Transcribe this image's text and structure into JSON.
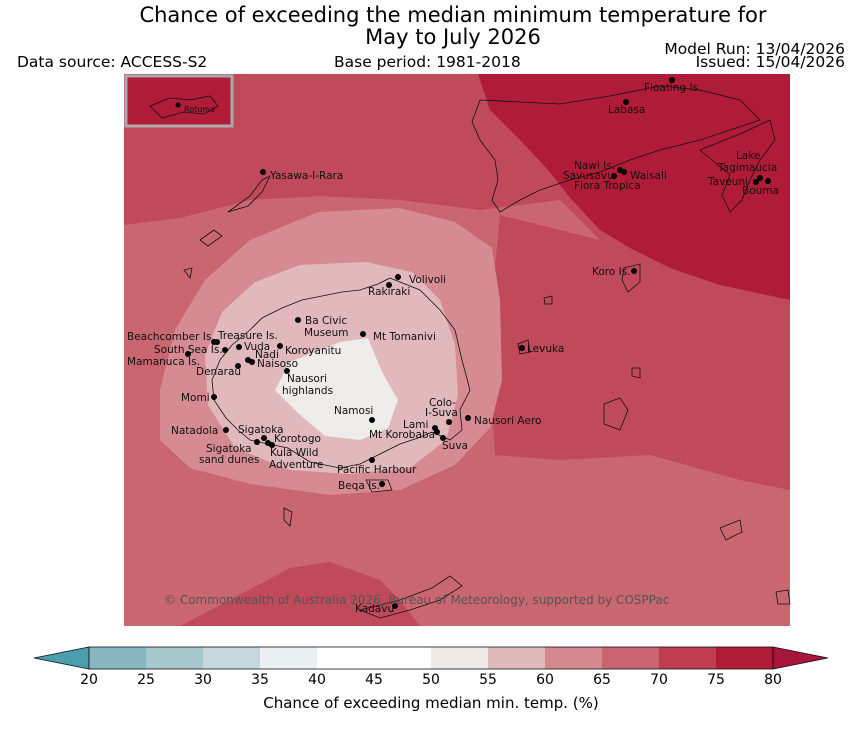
{
  "title": {
    "line1": "Chance of exceeding the median minimum temperature for",
    "line2": "May to July 2026"
  },
  "header": {
    "data_source": "Data source: ACCESS-S2",
    "base_period": "Base period: 1981-2018",
    "model_run": "Model Run: 13/04/2026",
    "issued": "Issued: 15/04/2026"
  },
  "inset": {
    "label": "Rotuma"
  },
  "places": [
    "Floating Is.",
    "Labasa",
    "Nawi Is.",
    "Savusavu",
    "Waisali",
    "Flora Tropica",
    "Lake",
    "Tagimaucia",
    "Taveuni",
    "Bouma",
    "Yasawa-I-Rara",
    "Koro Is.",
    "Volivoli",
    "Rakiraki",
    "Ba Civic",
    "Museum",
    "Mt Tomanivi",
    "Beachcomber Is.",
    "Treasure Is.",
    "South Sea Is.",
    "Vuda",
    "Koroyanitu",
    "Nadi",
    "Mamanuca Is.",
    "Naisoso",
    "Denarau",
    "Nausori",
    "highlands",
    "Levuka",
    "Momi",
    "Namosi",
    "Colo-",
    "I-Suva",
    "Nausori Aero",
    "Natadola",
    "Sigatoka",
    "Lami",
    "Mt Korobaba",
    "Korotogo",
    "Suva",
    "Sigatoka",
    "sand dunes",
    "Kula Wild",
    "Adventure",
    "Pacific Harbour",
    "Beqa Is.",
    "Kadavu"
  ],
  "copyright": "© Commonwealth of Australia 2026, Bureau of Meteorology, supported by COSPPac",
  "colorbar": {
    "label": "Chance of exceeding median min. temp. (%)",
    "ticks": [
      "20",
      "25",
      "30",
      "35",
      "40",
      "45",
      "50",
      "55",
      "60",
      "65",
      "70",
      "75",
      "80"
    ],
    "colors": [
      "#68aebb",
      "#86b6c1",
      "#a6c7cc",
      "#c7d9dc",
      "#eaf0f1",
      "#ffffff",
      "#ffffff",
      "#ecebea",
      "#e0b9bd",
      "#d48990",
      "#c9646f",
      "#be3d4e",
      "#b01c37"
    ],
    "under_color": "#4a9fae",
    "over_color": "#a8153a"
  },
  "map_colors": {
    "c50_55": "#edecea",
    "c55_60": "#e1b9bd",
    "c60_65": "#d68b93",
    "c65_70": "#c96670",
    "c70_75": "#c04a5a",
    "c75_80": "#b01c37"
  }
}
